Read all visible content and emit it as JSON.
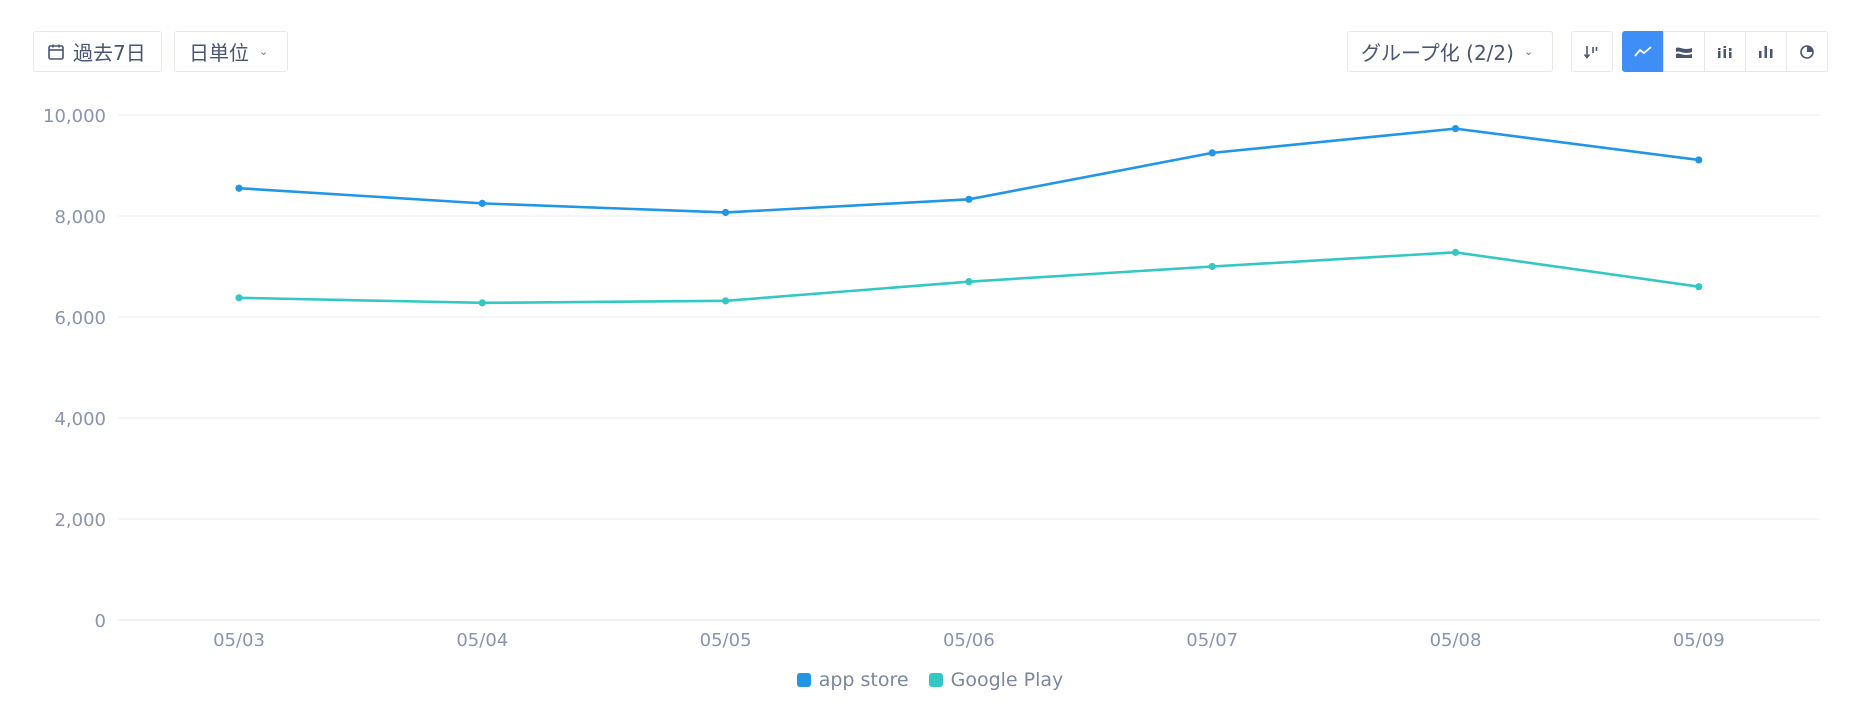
{
  "toolbar": {
    "date_range_label": "過去7日",
    "unit_label": "日単位",
    "group_label": "グループ化 (2/2)"
  },
  "colors": {
    "accent": "#3f8ef7",
    "grid": "#e9edf3",
    "axis_text": "#8a94ad"
  },
  "icons": {
    "date_range": "calendar-icon",
    "sort": "sort-icon",
    "chart_types": [
      "line-chart-icon",
      "area-chart-icon",
      "stacked-bar-icon",
      "bar-chart-icon",
      "pie-chart-icon"
    ],
    "active_chart_type": "line-chart-icon"
  },
  "chart_data": {
    "type": "line",
    "categories": [
      "05/03",
      "05/04",
      "05/05",
      "05/06",
      "05/07",
      "05/08",
      "05/09"
    ],
    "y_ticks": [
      "0",
      "2,000",
      "4,000",
      "6,000",
      "8,000",
      "10,000"
    ],
    "ylim": [
      0,
      10000
    ],
    "grid": true,
    "legend_position": "bottom-center",
    "series": [
      {
        "name": "app store",
        "color": "#2196e6",
        "values": [
          8550,
          8250,
          8070,
          8330,
          9250,
          9730,
          9110
        ]
      },
      {
        "name": "Google Play",
        "color": "#33c8c4",
        "values": [
          6380,
          6280,
          6320,
          6700,
          7000,
          7280,
          6600
        ]
      }
    ]
  }
}
